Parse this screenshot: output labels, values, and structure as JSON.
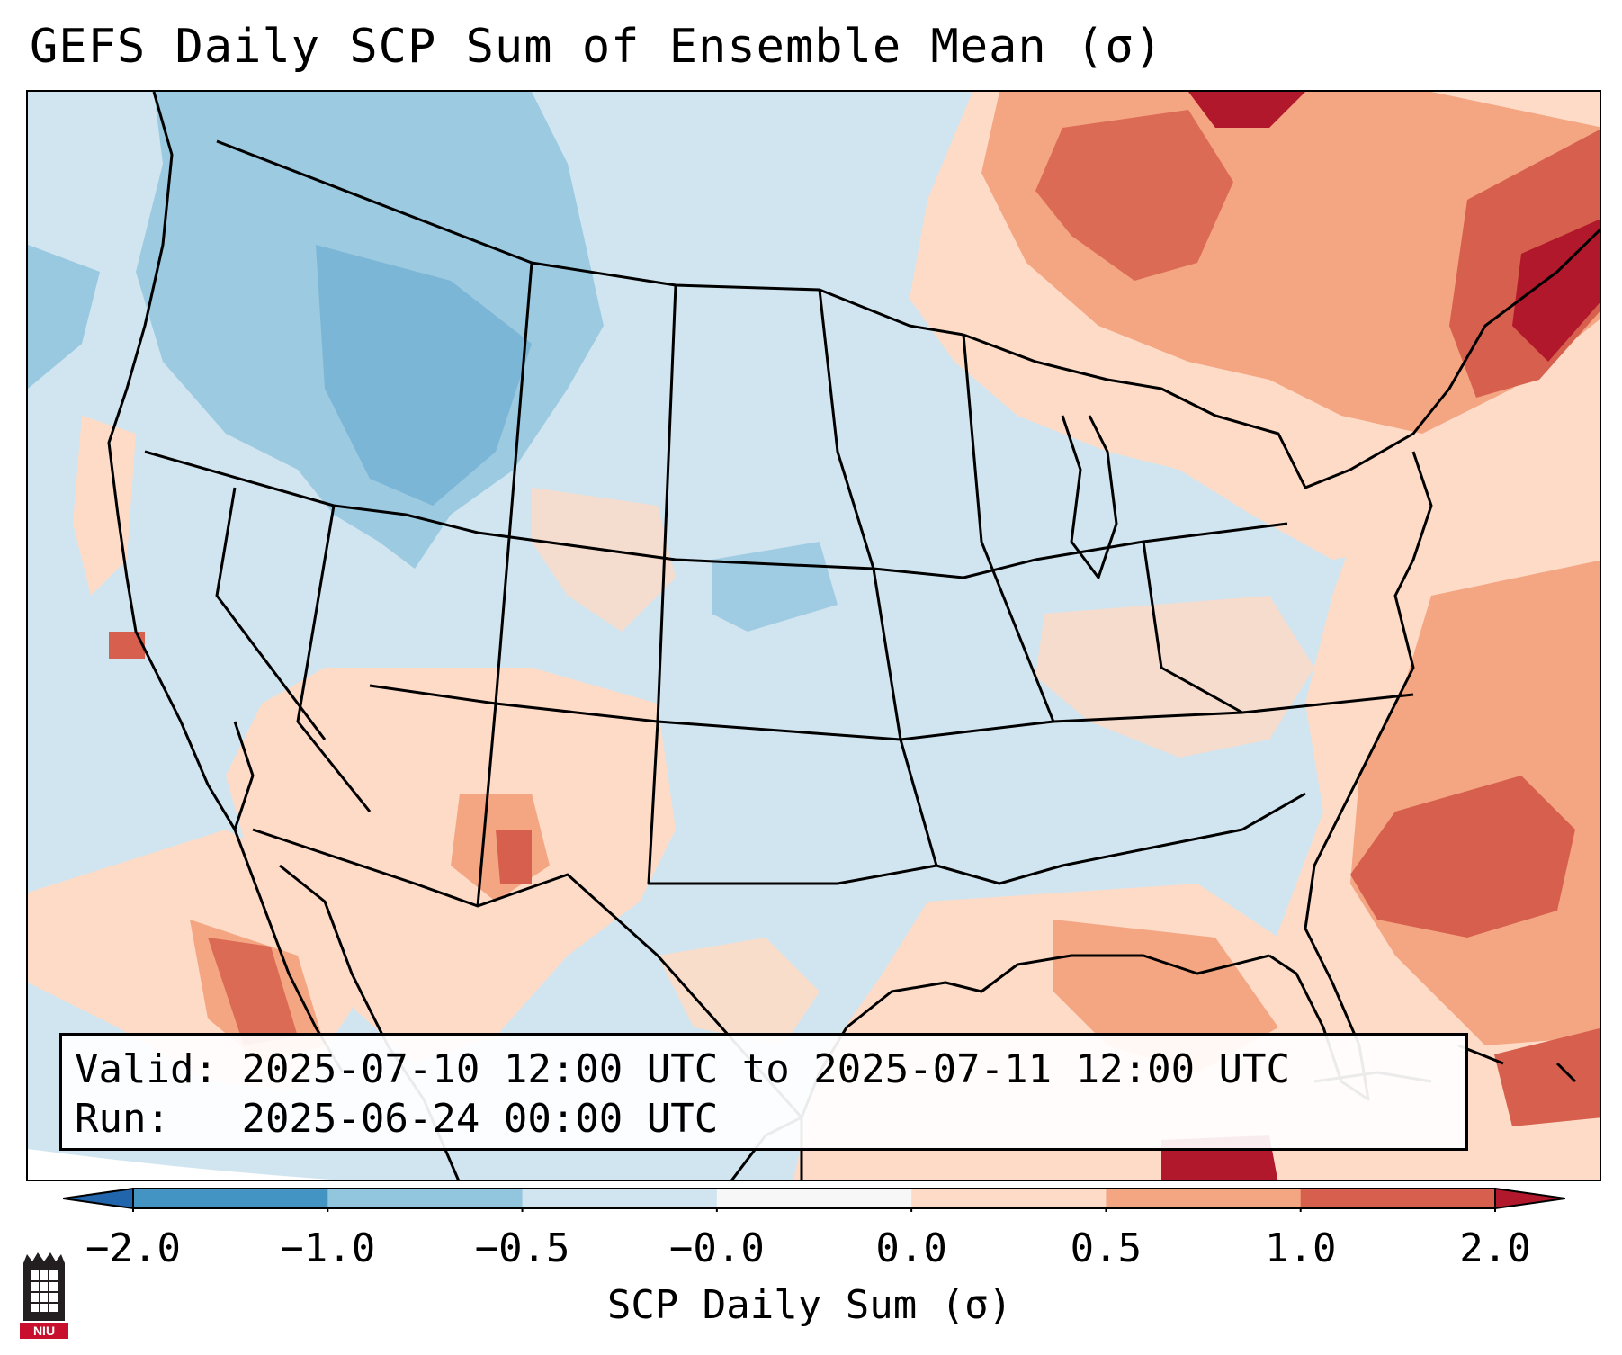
{
  "title": "GEFS Daily SCP Sum of Ensemble Mean (σ)",
  "info_box": {
    "valid_label": "Valid:",
    "valid_value": "2025-07-10 12:00 UTC to 2025-07-11 12:00 UTC",
    "run_label": "Run:",
    "run_value": "2025-06-24 00:00 UTC"
  },
  "colorbar": {
    "label": "SCP Daily Sum (σ)",
    "ticks": [
      "−2.0",
      "−1.0",
      "−0.5",
      "−0.0",
      "0.0",
      "0.5",
      "1.0",
      "2.0"
    ],
    "colors": [
      "#4393c3",
      "#92c5de",
      "#d1e5f0",
      "#f7f7f7",
      "#fddbc7",
      "#f4a582",
      "#d6604d"
    ],
    "extend_low": "#2166ac",
    "extend_high": "#b2182b"
  },
  "logo": {
    "text": "NIU",
    "name": "Northern Illinois University"
  },
  "map_colors": {
    "land": "#d1e5f0",
    "blue_light": "#92c5de",
    "blue_dark": "#4393c3",
    "pink": "#fddbc7",
    "salmon": "#f4a582",
    "red": "#d6604d",
    "dark_red": "#b2182b"
  }
}
